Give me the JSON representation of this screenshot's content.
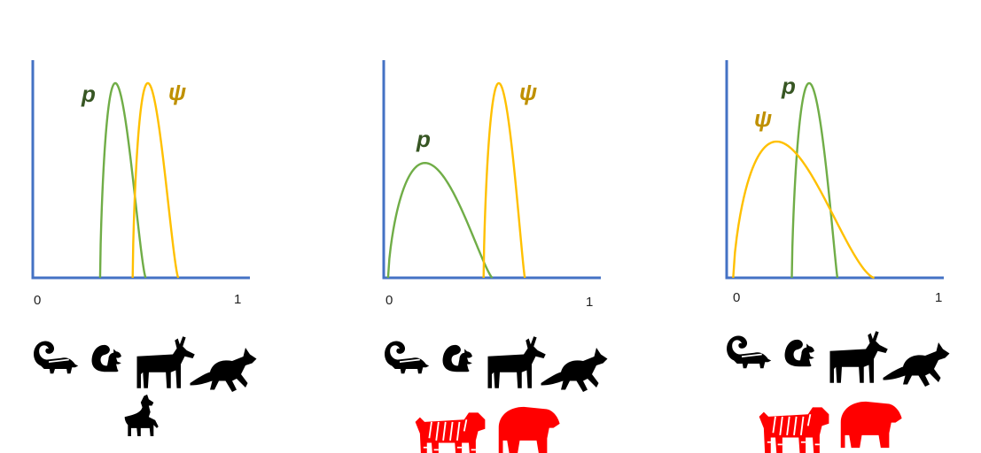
{
  "colors": {
    "axis": "#4472C4",
    "p": "#70AD47",
    "psi": "#FFC000",
    "p_label": "#375623",
    "psi_label": "#BF9000",
    "animal_default": "#000000",
    "animal_highlight": "#FF0000"
  },
  "panels": [
    {
      "ticks": {
        "zero": "0",
        "one": "1"
      },
      "curves": {
        "p": {
          "label": "p",
          "support": [
            0.31,
            0.52
          ],
          "mode": 0.38,
          "height": 1.0
        },
        "psi": {
          "label": "ψ",
          "support": [
            0.46,
            0.67
          ],
          "mode": 0.53,
          "height": 1.0
        }
      },
      "animals": [
        {
          "name": "skunk",
          "color": "#000000"
        },
        {
          "name": "squirrel",
          "color": "#000000"
        },
        {
          "name": "deer",
          "color": "#000000"
        },
        {
          "name": "fox",
          "color": "#000000"
        },
        {
          "name": "wolf",
          "color": "#000000"
        }
      ]
    },
    {
      "ticks": {
        "zero": "0",
        "one": "1"
      },
      "curves": {
        "p": {
          "label": "p",
          "support": [
            0.02,
            0.5
          ],
          "mode": 0.19,
          "height": 0.59
        },
        "psi": {
          "label": "ψ",
          "support": [
            0.46,
            0.65
          ],
          "mode": 0.53,
          "height": 1.0
        }
      },
      "animals": [
        {
          "name": "skunk",
          "color": "#000000"
        },
        {
          "name": "squirrel",
          "color": "#000000"
        },
        {
          "name": "deer",
          "color": "#000000"
        },
        {
          "name": "fox",
          "color": "#000000"
        },
        {
          "name": "tiger",
          "color": "#FF0000"
        },
        {
          "name": "bear",
          "color": "#FF0000"
        }
      ]
    },
    {
      "ticks": {
        "zero": "0",
        "one": "1"
      },
      "curves": {
        "p": {
          "label": "p",
          "support": [
            0.3,
            0.51
          ],
          "mode": 0.38,
          "height": 1.0
        },
        "psi": {
          "label": "ψ",
          "support": [
            0.03,
            0.68
          ],
          "mode": 0.23,
          "height": 0.7
        }
      },
      "animals": [
        {
          "name": "skunk",
          "color": "#000000"
        },
        {
          "name": "squirrel",
          "color": "#000000"
        },
        {
          "name": "deer",
          "color": "#000000"
        },
        {
          "name": "fox",
          "color": "#000000"
        },
        {
          "name": "tiger",
          "color": "#FF0000"
        },
        {
          "name": "bear",
          "color": "#FF0000"
        }
      ]
    }
  ]
}
